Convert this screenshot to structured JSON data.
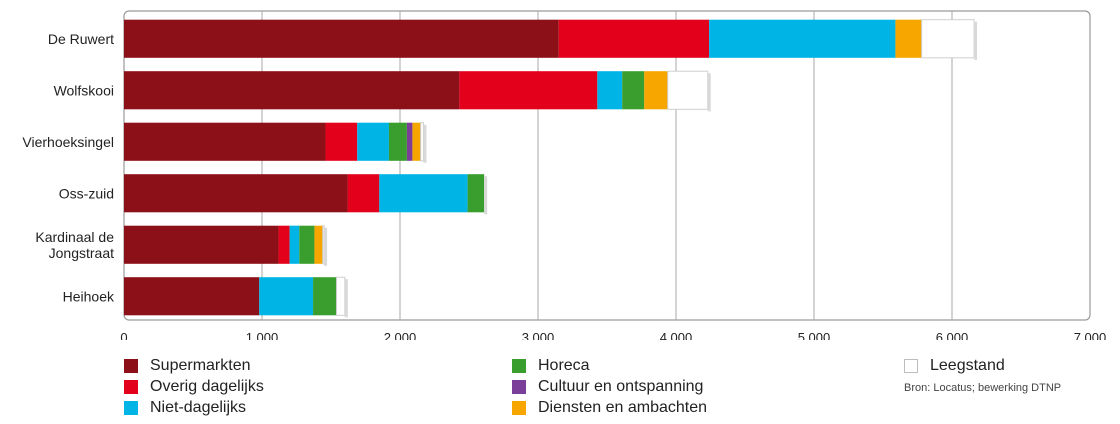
{
  "chart_data": {
    "type": "bar",
    "orientation": "horizontal",
    "stacked": true,
    "categories": [
      "De Ruwert",
      "Wolfskooi",
      "Vierhoeksingel",
      "Oss-zuid",
      "Kardinaal de Jongstraat",
      "Heihoek"
    ],
    "category_label_lines": [
      [
        "De Ruwert"
      ],
      [
        "Wolfskooi"
      ],
      [
        "Vierhoeksingel"
      ],
      [
        "Oss-zuid"
      ],
      [
        "Kardinaal de",
        "Jongstraat"
      ],
      [
        "Heihoek"
      ]
    ],
    "series": [
      {
        "name": "Supermarkten",
        "color": "#8b1018",
        "values": [
          3150,
          2430,
          1460,
          1620,
          1120,
          980
        ]
      },
      {
        "name": "Overig dagelijks",
        "color": "#e3001b",
        "values": [
          1090,
          1000,
          230,
          230,
          80,
          0
        ]
      },
      {
        "name": "Niet-dagelijks",
        "color": "#00b4e6",
        "values": [
          1350,
          180,
          230,
          640,
          70,
          390
        ]
      },
      {
        "name": "Horeca",
        "color": "#3a9e2e",
        "values": [
          0,
          160,
          130,
          120,
          110,
          170
        ]
      },
      {
        "name": "Cultuur en ontspanning",
        "color": "#7b3f9a",
        "values": [
          0,
          0,
          40,
          0,
          0,
          0
        ]
      },
      {
        "name": "Diensten en ambachten",
        "color": "#f7a600",
        "values": [
          190,
          170,
          60,
          0,
          60,
          0
        ]
      },
      {
        "name": "Leegstand",
        "color": "#ffffff",
        "values": [
          380,
          290,
          20,
          0,
          10,
          60
        ]
      }
    ],
    "xlim": [
      0,
      7000
    ],
    "xticks": [
      0,
      1000,
      2000,
      3000,
      4000,
      5000,
      6000,
      7000
    ],
    "xtick_labels": [
      "0",
      "1.000",
      "2.000",
      "3.000",
      "4.000",
      "5.000",
      "6.000",
      "7.000"
    ],
    "grid": true,
    "legend_position": "bottom",
    "title": "",
    "xlabel": "",
    "ylabel": ""
  },
  "source_note": "Bron: Locatus; bewerking DTNP"
}
